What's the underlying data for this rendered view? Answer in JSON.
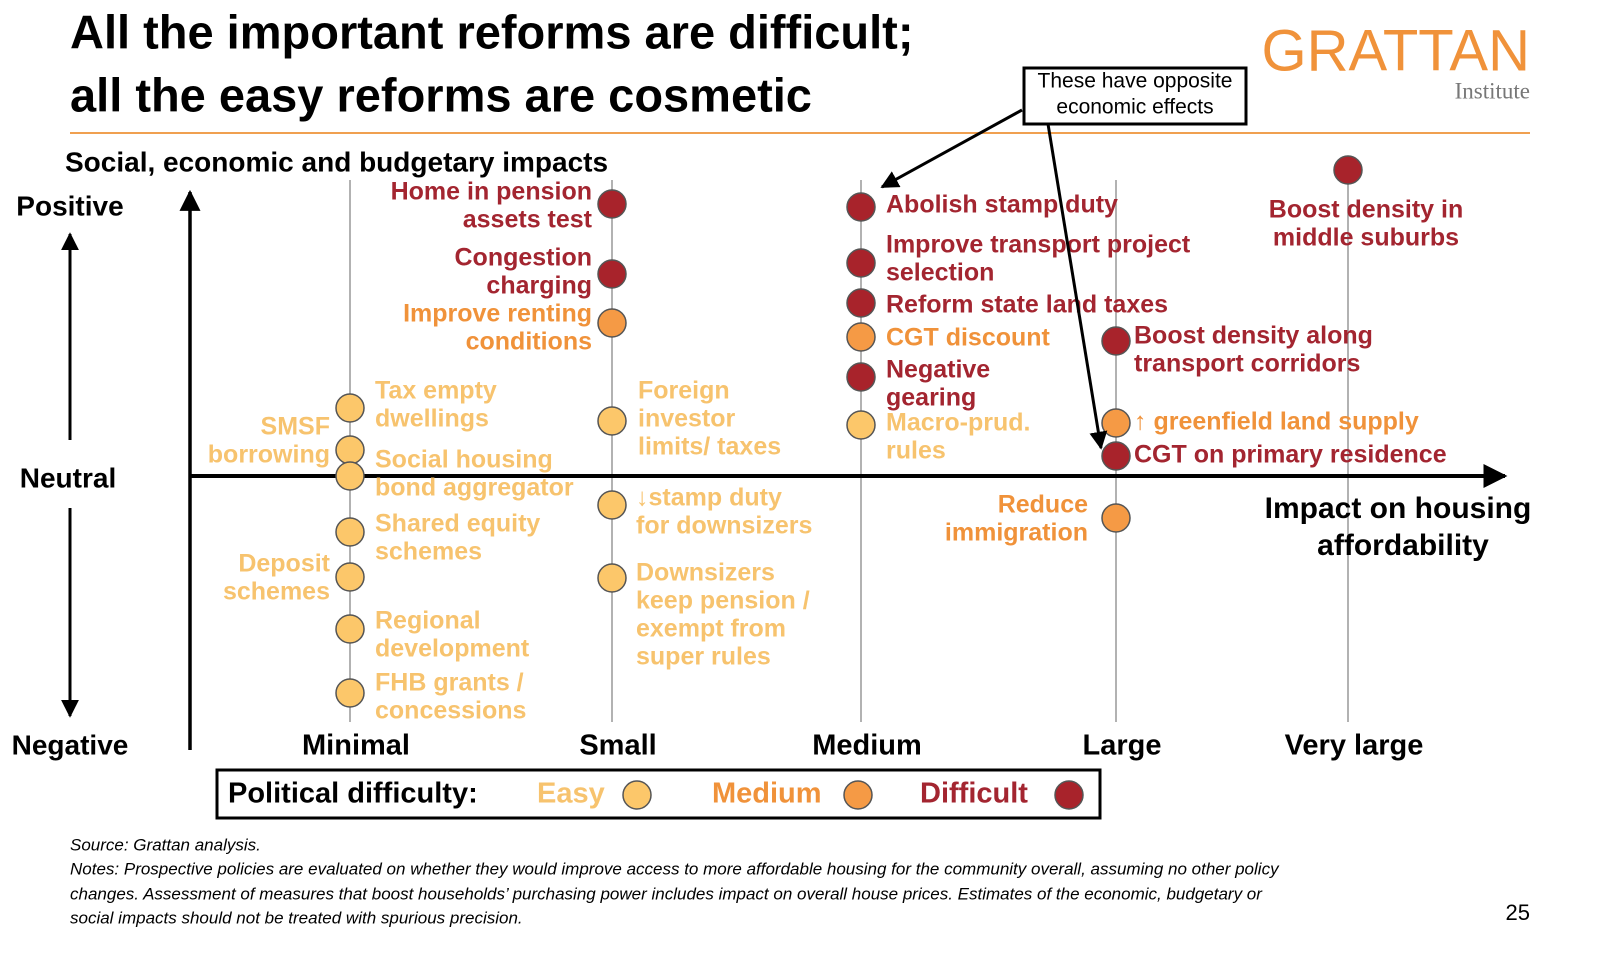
{
  "header": {
    "title_lines": [
      "All the important reforms are difficult;",
      "all the easy reforms are cosmetic"
    ],
    "logo": {
      "name": "GRATTAN",
      "sub": "Institute"
    }
  },
  "callout": {
    "lines": [
      "These have opposite",
      "economic effects"
    ]
  },
  "y_axis": {
    "title": "Social, economic and budgetary impacts",
    "top": "Positive",
    "middle": "Neutral",
    "bottom": "Negative"
  },
  "x_axis": {
    "title_lines": [
      "Impact on housing",
      "affordability"
    ],
    "categories": [
      "Minimal",
      "Small",
      "Medium",
      "Large",
      "Very large"
    ]
  },
  "legend": {
    "title": "Political difficulty:",
    "items": [
      {
        "name": "Easy",
        "color": "#fcc76a",
        "text_color": "#f7c36e"
      },
      {
        "name": "Medium",
        "color": "#f59a45",
        "text_color": "#f0923a"
      },
      {
        "name": "Difficult",
        "color": "#a8232b",
        "text_color": "#a32530"
      }
    ]
  },
  "policies": [
    {
      "lines": [
        "Tax empty",
        "dwellings"
      ],
      "difficulty": "Easy"
    },
    {
      "lines": [
        "SMSF",
        "borrowing"
      ],
      "difficulty": "Easy"
    },
    {
      "lines": [
        "Social housing",
        "bond aggregator"
      ],
      "difficulty": "Easy"
    },
    {
      "lines": [
        "Shared equity",
        "schemes"
      ],
      "difficulty": "Easy"
    },
    {
      "lines": [
        "Deposit",
        "schemes"
      ],
      "difficulty": "Easy"
    },
    {
      "lines": [
        "Regional",
        "development"
      ],
      "difficulty": "Easy"
    },
    {
      "lines": [
        "FHB grants /",
        "concessions"
      ],
      "difficulty": "Easy"
    },
    {
      "lines": [
        "Home in pension",
        "assets test"
      ],
      "difficulty": "Difficult"
    },
    {
      "lines": [
        "Congestion",
        "charging"
      ],
      "difficulty": "Difficult"
    },
    {
      "lines": [
        "Improve renting",
        "conditions"
      ],
      "difficulty": "Medium"
    },
    {
      "lines": [
        "Foreign",
        "investor",
        "limits/ taxes"
      ],
      "difficulty": "Easy"
    },
    {
      "lines": [
        "↓stamp duty",
        "for downsizers"
      ],
      "difficulty": "Easy"
    },
    {
      "lines": [
        "Downsizers",
        "keep pension /",
        "exempt from",
        "super rules"
      ],
      "difficulty": "Easy"
    },
    {
      "lines": [
        "Abolish stamp duty"
      ],
      "difficulty": "Difficult"
    },
    {
      "lines": [
        "Improve transport project",
        "selection"
      ],
      "difficulty": "Difficult"
    },
    {
      "lines": [
        "Reform state land taxes"
      ],
      "difficulty": "Difficult"
    },
    {
      "lines": [
        "CGT discount"
      ],
      "difficulty": "Medium"
    },
    {
      "lines": [
        "Negative",
        "gearing"
      ],
      "difficulty": "Difficult"
    },
    {
      "lines": [
        "Macro-prud.",
        "rules"
      ],
      "difficulty": "Easy"
    },
    {
      "lines": [
        "Boost density along",
        "transport corridors"
      ],
      "difficulty": "Difficult"
    },
    {
      "lines": [
        "↑ greenfield land supply"
      ],
      "difficulty": "Medium"
    },
    {
      "lines": [
        "CGT on primary residence"
      ],
      "difficulty": "Difficult"
    },
    {
      "lines": [
        "Reduce",
        "immigration"
      ],
      "difficulty": "Medium"
    },
    {
      "lines": [
        "Boost density in",
        "middle suburbs"
      ],
      "difficulty": "Difficult"
    }
  ],
  "footer": {
    "source": "Source: Grattan analysis.",
    "notes_lines": [
      "Notes: Prospective policies are evaluated on whether they would improve access to more affordable housing for the community overall, assuming no other policy",
      "changes. Assessment of measures that boost households’ purchasing power includes impact on overall house prices. Estimates of the economic, budgetary or",
      "social impacts should not be treated with spurious precision."
    ],
    "page": "25"
  }
}
